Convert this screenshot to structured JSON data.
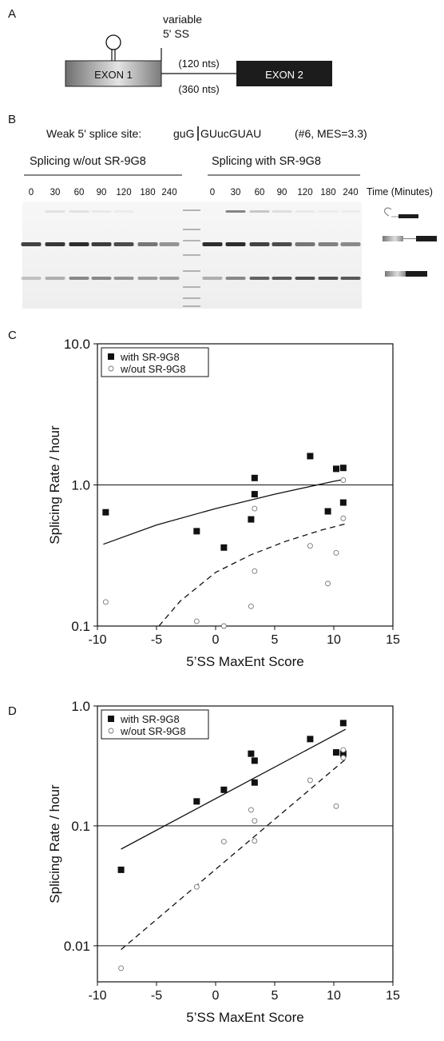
{
  "panelA": {
    "letter": "A",
    "exon1": "EXON 1",
    "exon2": "EXON 2",
    "variable_line1": "variable",
    "variable_line2": "5' SS",
    "intron_short": "(120 nts)",
    "intron_long": "(360 nts)"
  },
  "panelB": {
    "letter": "B",
    "site_label": "Weak 5' splice site:",
    "site_seq_left": "guG",
    "site_seq_right": "GUucGUAU",
    "site_info": "(#6, MES=3.3)",
    "left_title": "Splicing w/out SR-9G8",
    "right_title": "Splicing with SR-9G8",
    "timepoints": [
      "0",
      "30",
      "60",
      "90",
      "120",
      "180",
      "240"
    ],
    "time_label": "Time (Minutes)"
  },
  "chart_data": [
    {
      "panel": "C",
      "type": "scatter",
      "xlabel": "5’SS MaxEnt Score",
      "ylabel": "Splicing Rate / hour",
      "xlim": [
        -10,
        15
      ],
      "ylim": [
        0.1,
        10
      ],
      "yscale": "log",
      "xticks": [
        "-10",
        "-5",
        "0",
        "5",
        "10",
        "15"
      ],
      "yticks": [
        "0.1",
        "1.0",
        "10.0"
      ],
      "reference_lines": [
        1.0
      ],
      "legend_position": "top-left",
      "series": [
        {
          "name": "with SR-9G8",
          "marker": "filled-square",
          "points": [
            [
              -9.3,
              0.64
            ],
            [
              -1.6,
              0.47
            ],
            [
              0.7,
              0.36
            ],
            [
              3.0,
              0.57
            ],
            [
              3.3,
              0.86
            ],
            [
              3.3,
              1.12
            ],
            [
              8.0,
              1.6
            ],
            [
              9.5,
              0.65
            ],
            [
              10.2,
              1.3
            ],
            [
              10.8,
              1.32
            ],
            [
              10.8,
              0.75
            ]
          ],
          "fit": {
            "style": "solid",
            "points": [
              [
                -9.5,
                0.38
              ],
              [
                -5,
                0.52
              ],
              [
                0,
                0.68
              ],
              [
                5,
                0.86
              ],
              [
                10,
                1.06
              ],
              [
                11,
                1.1
              ]
            ]
          }
        },
        {
          "name": "w/out SR-9G8",
          "marker": "open-circle",
          "points": [
            [
              -9.3,
              0.148
            ],
            [
              -1.6,
              0.108
            ],
            [
              0.7,
              0.1
            ],
            [
              3.0,
              0.138
            ],
            [
              3.3,
              0.245
            ],
            [
              3.3,
              0.68
            ],
            [
              8.0,
              0.37
            ],
            [
              9.5,
              0.2
            ],
            [
              10.2,
              0.33
            ],
            [
              10.8,
              0.58
            ],
            [
              10.8,
              1.08
            ]
          ],
          "fit": {
            "style": "dashed",
            "points": [
              [
                -4.8,
                0.1
              ],
              [
                -3,
                0.15
              ],
              [
                0,
                0.24
              ],
              [
                3,
                0.32
              ],
              [
                6,
                0.4
              ],
              [
                9,
                0.48
              ],
              [
                11,
                0.53
              ]
            ]
          }
        }
      ]
    },
    {
      "panel": "D",
      "type": "scatter",
      "xlabel": "5’SS MaxEnt Score",
      "ylabel": "Splicing Rate / hour",
      "xlim": [
        -10,
        15
      ],
      "ylim": [
        0.005,
        1.0
      ],
      "yscale": "log",
      "xticks": [
        "-10",
        "-5",
        "0",
        "5",
        "10",
        "15"
      ],
      "yticks": [
        "0.01",
        "0.1",
        "1.0"
      ],
      "reference_lines": [
        0.1,
        0.01
      ],
      "legend_position": "top-left",
      "series": [
        {
          "name": "with SR-9G8",
          "marker": "filled-square",
          "points": [
            [
              -8.0,
              0.043
            ],
            [
              -1.6,
              0.16
            ],
            [
              0.7,
              0.2
            ],
            [
              3.0,
              0.4
            ],
            [
              3.3,
              0.35
            ],
            [
              3.3,
              0.23
            ],
            [
              8.0,
              0.53
            ],
            [
              10.2,
              0.41
            ],
            [
              10.8,
              0.4
            ],
            [
              10.8,
              0.72
            ]
          ],
          "fit": {
            "style": "solid",
            "points": [
              [
                -8.0,
                0.064
              ],
              [
                11,
                0.64
              ]
            ]
          }
        },
        {
          "name": "w/out SR-9G8",
          "marker": "open-circle",
          "points": [
            [
              -8.0,
              0.0065
            ],
            [
              -1.6,
              0.031
            ],
            [
              0.7,
              0.074
            ],
            [
              3.0,
              0.136
            ],
            [
              3.3,
              0.11
            ],
            [
              3.3,
              0.075
            ],
            [
              8.0,
              0.24
            ],
            [
              10.2,
              0.146
            ],
            [
              10.8,
              0.37
            ],
            [
              10.8,
              0.43
            ]
          ],
          "fit": {
            "style": "dashed",
            "points": [
              [
                -8.0,
                0.0093
              ],
              [
                11,
                0.36
              ]
            ]
          }
        }
      ]
    }
  ],
  "colors": {
    "ink": "#111111",
    "exon2": "#1c1c1c",
    "gel_background": "#f4f4f4",
    "band": "#3a3a3a"
  }
}
